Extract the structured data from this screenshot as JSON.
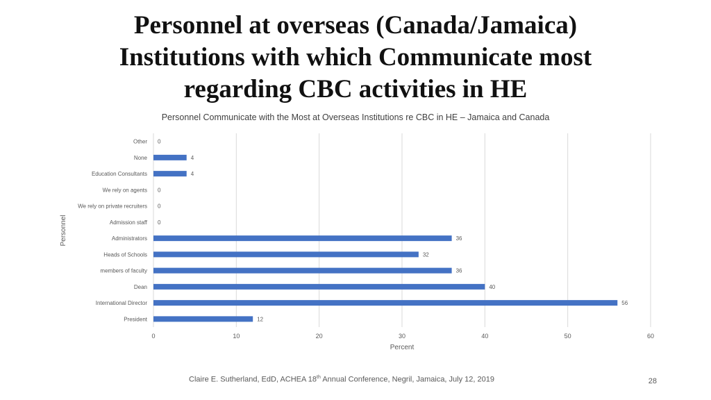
{
  "slide": {
    "title_lines": [
      "Personnel at overseas (Canada/Jamaica)",
      "Institutions with which Communicate most",
      "regarding CBC activities in HE"
    ],
    "footer": {
      "before_sup": "Claire E. Sutherland, EdD, ACHEA 18",
      "sup": "th",
      "after_sup": " Annual Conference, Negril, Jamaica, July 12, 2019"
    },
    "page_number": "28"
  },
  "chart_data": {
    "type": "bar",
    "orientation": "horizontal",
    "title": "Personnel Communicate with the Most at Overseas Institutions re CBC in HE – Jamaica and Canada",
    "xlabel": "Percent",
    "ylabel": "Personnel",
    "xlim": [
      0,
      60
    ],
    "xticks": [
      0,
      10,
      20,
      30,
      40,
      50,
      60
    ],
    "grid": "vertical",
    "legend": "none",
    "bar_color": "#4472C4",
    "categories": [
      "Other",
      "None",
      "Education Consultants",
      "We rely on agents",
      "We rely on private recruiters",
      "Admission staff",
      "Administrators",
      "Heads of Schools",
      "members of faculty",
      "Dean",
      "International Director",
      "President"
    ],
    "values": [
      0,
      4,
      4,
      0,
      0,
      0,
      36,
      32,
      36,
      40,
      56,
      12
    ]
  }
}
